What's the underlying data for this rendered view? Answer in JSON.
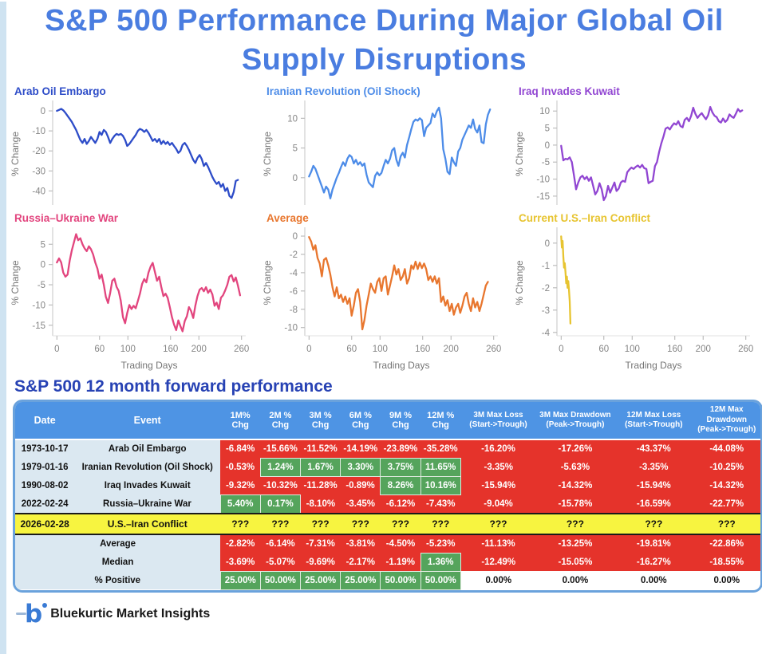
{
  "title": {
    "line1": "S&P 500 Performance During Major Global Oil",
    "line2": "Supply Disruptions",
    "color": "#4a7de0"
  },
  "chart_data": [
    {
      "type": "line",
      "title": "Arab Oil Embargo",
      "color": "#2d4cc8",
      "ylabel": "% Change",
      "xlabel": "Trading Days",
      "show_x_labels": false,
      "yticks": [
        0,
        -10,
        -20,
        -30,
        -40
      ],
      "xticks": [
        0,
        60,
        100,
        160,
        200,
        260
      ],
      "ylim": [
        -47,
        4
      ],
      "xlim": [
        -6,
        266
      ],
      "x_step": 3,
      "y": [
        0,
        0.5,
        1,
        0.3,
        -1,
        -2.5,
        -4,
        -5.5,
        -7.5,
        -9.5,
        -12,
        -14.5,
        -16,
        -14,
        -16.5,
        -15,
        -13,
        -14.5,
        -16,
        -14,
        -10.5,
        -12,
        -9.5,
        -10.5,
        -13,
        -16,
        -14,
        -12.5,
        -11.5,
        -12,
        -11.5,
        -12.5,
        -14.5,
        -17.5,
        -16.5,
        -15,
        -13.5,
        -12,
        -10,
        -9,
        -9.5,
        -10.5,
        -9.5,
        -11,
        -13,
        -15,
        -14,
        -15.5,
        -14,
        -16.5,
        -15,
        -16.5,
        -15.5,
        -17,
        -16,
        -17.5,
        -19,
        -21,
        -20,
        -17,
        -16,
        -17.5,
        -19.5,
        -22,
        -24.5,
        -26,
        -23.5,
        -22,
        -24,
        -27.5,
        -26,
        -28,
        -30.5,
        -33,
        -35,
        -36.5,
        -35.5,
        -38,
        -36.5,
        -40,
        -38.5,
        -42.5,
        -43.5,
        -40.5,
        -35,
        -34.5
      ]
    },
    {
      "type": "line",
      "title": "Iranian Revolution (Oil Shock)",
      "color": "#4d8ce8",
      "ylabel": "% Change",
      "xlabel": "Trading Days",
      "show_x_labels": false,
      "yticks": [
        0,
        5,
        10
      ],
      "xticks": [
        0,
        60,
        100,
        160,
        200,
        260
      ],
      "ylim": [
        -4.6,
        12.6
      ],
      "xlim": [
        -6,
        266
      ],
      "x_step": 3,
      "y": [
        0.2,
        1,
        2,
        1.5,
        0.5,
        -0.5,
        -1.5,
        -2.5,
        -1.5,
        -2,
        -3.5,
        -2,
        -1,
        0,
        0.8,
        1.8,
        2.6,
        2,
        3.2,
        3.8,
        3.5,
        2.4,
        3,
        2.2,
        2.6,
        2,
        2.4,
        0.5,
        -0.8,
        -1.2,
        -1.6,
        0.3,
        0.9,
        0.4,
        0.8,
        2,
        3,
        2.4,
        3.2,
        4.6,
        5,
        3,
        2,
        3.6,
        4.2,
        3.4,
        5.5,
        6.8,
        8.2,
        9.4,
        9.8,
        9.6,
        10,
        9.7,
        7,
        8.4,
        8.8,
        9.2,
        10.8,
        10.2,
        11.2,
        11.8,
        10,
        4.8,
        3.2,
        1,
        0.6,
        3.4,
        2.6,
        2,
        4.4,
        5,
        6.4,
        7.2,
        8,
        8.8,
        8.4,
        9.8,
        8.2,
        7.6,
        8.8,
        6,
        5.8,
        9,
        10.6,
        11.5
      ]
    },
    {
      "type": "line",
      "title": "Iraq Invades Kuwait",
      "color": "#9146d2",
      "ylabel": "% Change",
      "xlabel": "Trading Days",
      "show_x_labels": false,
      "yticks": [
        10,
        5,
        0,
        -5,
        -10,
        -15
      ],
      "xticks": [
        0,
        60,
        100,
        160,
        200,
        260
      ],
      "ylim": [
        -17.6,
        12.4
      ],
      "xlim": [
        -6,
        266
      ],
      "x_step": 3,
      "y": [
        -0.2,
        -4.5,
        -4,
        -4.2,
        -3.6,
        -5,
        -9,
        -13,
        -11,
        -9.5,
        -9,
        -10,
        -9.3,
        -10.5,
        -9.5,
        -12,
        -14.5,
        -13.5,
        -11.2,
        -13,
        -16.2,
        -15,
        -12,
        -14,
        -12.5,
        -11,
        -13.5,
        -12.8,
        -11,
        -10.5,
        -10.8,
        -8,
        -7.2,
        -6.6,
        -7,
        -6.4,
        -6,
        -6.6,
        -5.8,
        -6.8,
        -7,
        -11.2,
        -10.8,
        -10.5,
        -6.2,
        -5,
        -2,
        0.5,
        2.5,
        4.8,
        5.2,
        4.6,
        5.6,
        6.4,
        6,
        7,
        5.6,
        5.2,
        7.4,
        8,
        7,
        8.6,
        11,
        9.2,
        8,
        8.8,
        9.4,
        8.4,
        7.6,
        8.8,
        11.2,
        9.6,
        8.6,
        8.2,
        7,
        6.6,
        7.8,
        6.8,
        7.4,
        9,
        8.4,
        8,
        9.2,
        10.6,
        9.8,
        10.2
      ]
    },
    {
      "type": "line",
      "title": "Russia–Ukraine War",
      "color": "#e2457e",
      "ylabel": "% Change",
      "xlabel": "Trading Days",
      "show_x_labels": true,
      "yticks": [
        5,
        0,
        -5,
        -10,
        -15
      ],
      "xticks": [
        0,
        60,
        100,
        160,
        200,
        260
      ],
      "ylim": [
        -17.6,
        8.6
      ],
      "xlim": [
        -6,
        266
      ],
      "x_step": 3,
      "y": [
        0.5,
        1.5,
        0.5,
        -2,
        -3,
        -2.5,
        1,
        3.5,
        5.5,
        7.5,
        6,
        6.5,
        5,
        4,
        3.3,
        4.5,
        3.8,
        2.5,
        0.5,
        -1,
        -3.5,
        -2.5,
        -5,
        -8,
        -9.5,
        -7,
        -4,
        -3.5,
        -5.5,
        -6.5,
        -9,
        -13,
        -14.5,
        -12,
        -10,
        -11,
        -10.2,
        -10.8,
        -9,
        -7.2,
        -4.8,
        -3.6,
        -4.4,
        -2,
        -0.5,
        0.4,
        -1.8,
        -4,
        -3,
        -5.5,
        -7.8,
        -7.2,
        -8.2,
        -10.5,
        -13,
        -14.8,
        -16.2,
        -13.8,
        -15.2,
        -16.5,
        -14,
        -12.8,
        -10.5,
        -11.5,
        -13.2,
        -10.2,
        -7.8,
        -6.2,
        -5.8,
        -6.6,
        -5.6,
        -7,
        -6.2,
        -7.4,
        -10.2,
        -9.4,
        -11,
        -8.2,
        -7.6,
        -6.4,
        -5,
        -3,
        -2.6,
        -4.2,
        -3.2,
        -5.2,
        -7.6
      ]
    },
    {
      "type": "line",
      "title": "Average",
      "color": "#e8762e",
      "ylabel": "% Change",
      "xlabel": "Trading Days",
      "show_x_labels": true,
      "yticks": [
        0,
        -2,
        -4,
        -6,
        -8,
        -10
      ],
      "xticks": [
        0,
        60,
        100,
        160,
        200,
        260
      ],
      "ylim": [
        -10.9,
        0.7
      ],
      "xlim": [
        -6,
        266
      ],
      "x_step": 3,
      "y": [
        -0.1,
        -0.6,
        -1.5,
        -1,
        -2.4,
        -3,
        -4.4,
        -2.6,
        -2.4,
        -3.2,
        -4.2,
        -5.6,
        -6.6,
        -5.6,
        -6.8,
        -6.4,
        -7.2,
        -6.6,
        -7.4,
        -6.8,
        -8.7,
        -7.6,
        -6.2,
        -5.8,
        -7.2,
        -10.2,
        -9.2,
        -7.6,
        -6.4,
        -5.2,
        -5.8,
        -6.2,
        -5,
        -4.6,
        -6,
        -4.6,
        -4.4,
        -6.4,
        -5.4,
        -4.4,
        -3.2,
        -4.2,
        -3.6,
        -4.8,
        -4.4,
        -3.6,
        -5.2,
        -4.6,
        -3.2,
        -3.6,
        -2.8,
        -3.6,
        -2.9,
        -3.5,
        -3,
        -3.6,
        -4.8,
        -4.4,
        -5,
        -4.4,
        -5.2,
        -4.6,
        -7.2,
        -6.6,
        -7.6,
        -7,
        -8.2,
        -7.4,
        -8.6,
        -7.8,
        -7.4,
        -8.4,
        -7.6,
        -6.6,
        -6.2,
        -7.4,
        -8.2,
        -6.8,
        -7.8,
        -7.2,
        -8.2,
        -7.4,
        -6.4,
        -5.4,
        -5
      ]
    },
    {
      "type": "line",
      "title": "Current U.S.–Iran Conflict",
      "color": "#e7c430",
      "ylabel": "% Change",
      "xlabel": "Trading Days",
      "show_x_labels": true,
      "yticks": [
        0,
        -1,
        -2,
        -3,
        -4
      ],
      "xticks": [
        0,
        60,
        100,
        160,
        200,
        260
      ],
      "ylim": [
        -4.15,
        0.6
      ],
      "xlim": [
        -6,
        266
      ],
      "x_step": 1,
      "y": [
        0.3,
        -0.2,
        0.1,
        -0.6,
        -1.1,
        -0.9,
        -1.3,
        -1.8,
        -1.5,
        -2.0,
        -1.7,
        -2.1,
        -2.6,
        -3.6
      ]
    }
  ],
  "table": {
    "heading": "S&P 500 12 month forward performance",
    "columns": [
      "Date",
      "Event",
      "1M% Chg",
      "2M % Chg",
      "3M % Chg",
      "6M % Chg",
      "9M % Chg",
      "12M % Chg",
      "3M Max Loss\n(Start->Trough)",
      "3M Max Drawdown\n(Peak->Trough)",
      "12M Max Loss\n(Start->Trough)",
      "12M Max Drawdown\n(Peak->Trough)"
    ],
    "rows": [
      {
        "date": "1973-10-17",
        "event": "Arab Oil Embargo",
        "values": [
          "-6.84%",
          "-15.66%",
          "-11.52%",
          "-14.19%",
          "-23.89%",
          "-35.28%",
          "-16.20%",
          "-17.26%",
          "-43.37%",
          "-44.08%"
        ],
        "colors": [
          "r",
          "r",
          "r",
          "r",
          "r",
          "r",
          "r",
          "r",
          "r",
          "r"
        ]
      },
      {
        "date": "1979-01-16",
        "event": "Iranian Revolution (Oil Shock)",
        "values": [
          "-0.53%",
          "1.24%",
          "1.67%",
          "3.30%",
          "3.75%",
          "11.65%",
          "-3.35%",
          "-5.63%",
          "-3.35%",
          "-10.25%"
        ],
        "colors": [
          "r",
          "g",
          "g",
          "g",
          "g",
          "g",
          "r",
          "r",
          "r",
          "r"
        ]
      },
      {
        "date": "1990-08-02",
        "event": "Iraq Invades Kuwait",
        "values": [
          "-9.32%",
          "-10.32%",
          "-11.28%",
          "-0.89%",
          "8.26%",
          "10.16%",
          "-15.94%",
          "-14.32%",
          "-15.94%",
          "-14.32%"
        ],
        "colors": [
          "r",
          "r",
          "r",
          "r",
          "g",
          "g",
          "r",
          "r",
          "r",
          "r"
        ]
      },
      {
        "date": "2022-02-24",
        "event": "Russia–Ukraine War",
        "values": [
          "5.40%",
          "0.17%",
          "-8.10%",
          "-3.45%",
          "-6.12%",
          "-7.43%",
          "-9.04%",
          "-15.78%",
          "-16.59%",
          "-22.77%"
        ],
        "colors": [
          "g",
          "g",
          "r",
          "r",
          "r",
          "r",
          "r",
          "r",
          "r",
          "r"
        ]
      },
      {
        "date": "2026-02-28",
        "event": "U.S.–Iran Conflict",
        "highlight": true,
        "values": [
          "???",
          "???",
          "???",
          "???",
          "???",
          "???",
          "???",
          "???",
          "???",
          "???"
        ],
        "colors": [
          "y",
          "y",
          "y",
          "y",
          "y",
          "y",
          "y",
          "y",
          "y",
          "y"
        ]
      },
      {
        "merged": true,
        "label": "Average",
        "values": [
          "-2.82%",
          "-6.14%",
          "-7.31%",
          "-3.81%",
          "-4.50%",
          "-5.23%",
          "-11.13%",
          "-13.25%",
          "-19.81%",
          "-22.86%"
        ],
        "colors": [
          "r",
          "r",
          "r",
          "r",
          "r",
          "r",
          "r",
          "r",
          "r",
          "r"
        ]
      },
      {
        "merged": true,
        "label": "Median",
        "values": [
          "-3.69%",
          "-5.07%",
          "-9.69%",
          "-2.17%",
          "-1.19%",
          "1.36%",
          "-12.49%",
          "-15.05%",
          "-16.27%",
          "-18.55%"
        ],
        "colors": [
          "r",
          "r",
          "r",
          "r",
          "r",
          "g",
          "r",
          "r",
          "r",
          "r"
        ]
      },
      {
        "merged": true,
        "label": "% Positive",
        "values": [
          "25.00%",
          "50.00%",
          "25.00%",
          "25.00%",
          "50.00%",
          "50.00%",
          "0.00%",
          "0.00%",
          "0.00%",
          "0.00%"
        ],
        "colors": [
          "g",
          "g",
          "g",
          "g",
          "g",
          "g",
          "w",
          "w",
          "w",
          "w"
        ]
      }
    ],
    "legend_colors": {
      "negative": "#e5332b",
      "positive": "#55a45c",
      "unknown": "#f7f440",
      "header": "#4e94e4",
      "label_cell": "#dbe8f1"
    }
  },
  "footer": {
    "brand": "Bluekurtic Market Insights",
    "logo_glyph": "b"
  }
}
